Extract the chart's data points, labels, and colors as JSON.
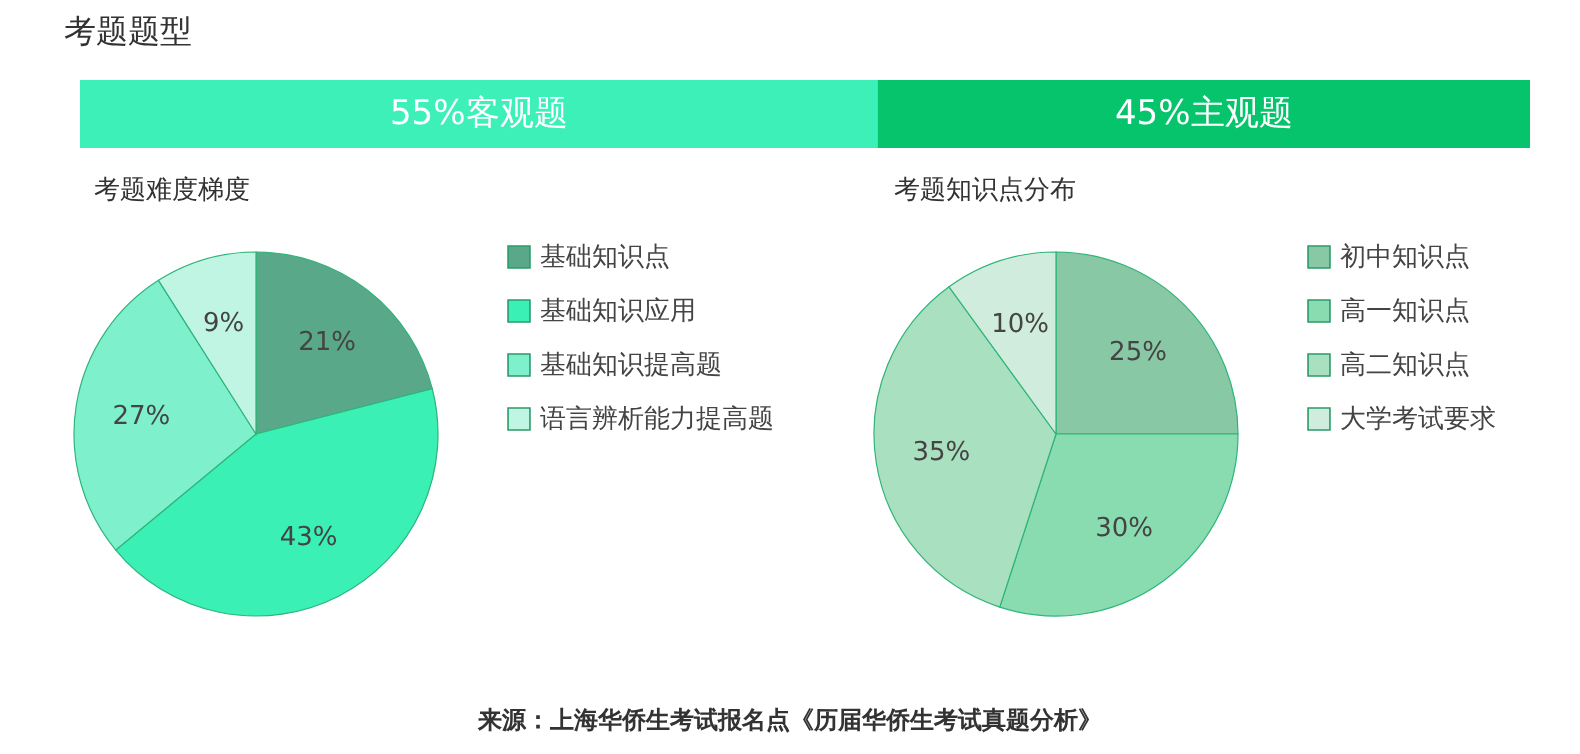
{
  "chart_data": [
    {
      "type": "bar",
      "title": "考题题型",
      "orientation": "horizontal",
      "stacked": true,
      "categories": [
        null
      ],
      "xlim": [
        0,
        100
      ],
      "series": [
        {
          "color": "#3df0b8",
          "values": [
            55
          ],
          "value_labels": [
            "55%客观题"
          ]
        },
        {
          "color": "#05c46c",
          "values": [
            45
          ],
          "value_labels": [
            "45%主观题"
          ]
        }
      ]
    },
    {
      "type": "pie",
      "title": "考题难度梯度",
      "legend": "right",
      "categories": [
        "基础知识点",
        "基础知识应用",
        "基础知识提高题",
        "语言辨析能力提高题"
      ],
      "values": [
        21,
        43,
        27,
        9
      ],
      "value_labels": [
        "21%",
        "43%",
        "27%",
        "9%"
      ],
      "colors": [
        "#5aa88a",
        "#3af0b4",
        "#7ef0cc",
        "#c0f5e4"
      ]
    },
    {
      "type": "pie",
      "title": "考题知识点分布",
      "legend": "right",
      "categories": [
        "初中知识点",
        "高一知识点",
        "高二知识点",
        "大学考试要求"
      ],
      "values": [
        25,
        30,
        35,
        10
      ],
      "value_labels": [
        "25%",
        "30%",
        "35%",
        "10%"
      ],
      "colors": [
        "#88c8a4",
        "#88dcb0",
        "#a8e0c0",
        "#d0ecdc"
      ],
      "annotations": [
        "来源：上海华侨生考试报名点《历届华侨生考试真题分析》"
      ]
    }
  ]
}
